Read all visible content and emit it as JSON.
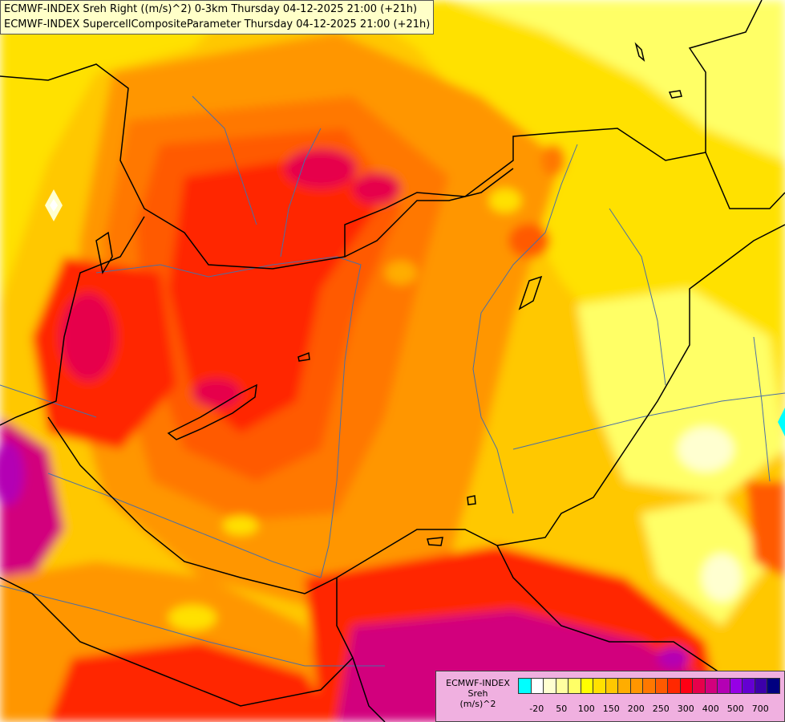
{
  "titles": [
    "ECMWF-INDEX Sreh Right ((m/s)^2) 0-3km Thursday 04-12-2025 21:00 (+21h)",
    "ECMWF-INDEX SupercellCompositeParameter Thursday 04-12-2025 21:00 (+21h)"
  ],
  "legend": {
    "title_lines": [
      "ECMWF-INDEX",
      "Sreh",
      "(m/s)^2"
    ],
    "colors": [
      "#00ffff",
      "#ffffff",
      "#ffffd0",
      "#ffffa0",
      "#ffff66",
      "#ffff00",
      "#ffe100",
      "#ffc800",
      "#ffad00",
      "#ff9600",
      "#ff7800",
      "#ff5a00",
      "#ff2800",
      "#ff0014",
      "#e6004b",
      "#d2007d",
      "#b400b4",
      "#9600e6",
      "#6400d2",
      "#3c00aa",
      "#000080"
    ],
    "labels": [
      "-20",
      "50",
      "100",
      "150",
      "200",
      "250",
      "300",
      "400",
      "500",
      "700"
    ]
  },
  "field_colors": {
    "low": "#ffff66",
    "mid_yellow": "#ffe100",
    "orange_light": "#ffc800",
    "orange": "#ff9600",
    "orange_dark": "#ff7800",
    "red_orange": "#ff5a00",
    "red": "#ff2800",
    "crimson": "#e6004b",
    "magenta": "#d2007d",
    "purple": "#b400b4",
    "pale": "#ffffd0",
    "white": "#ffffff",
    "cyan": "#00ffff"
  },
  "line_colors": {
    "border": "#000000",
    "river": "#4a6fa5"
  }
}
